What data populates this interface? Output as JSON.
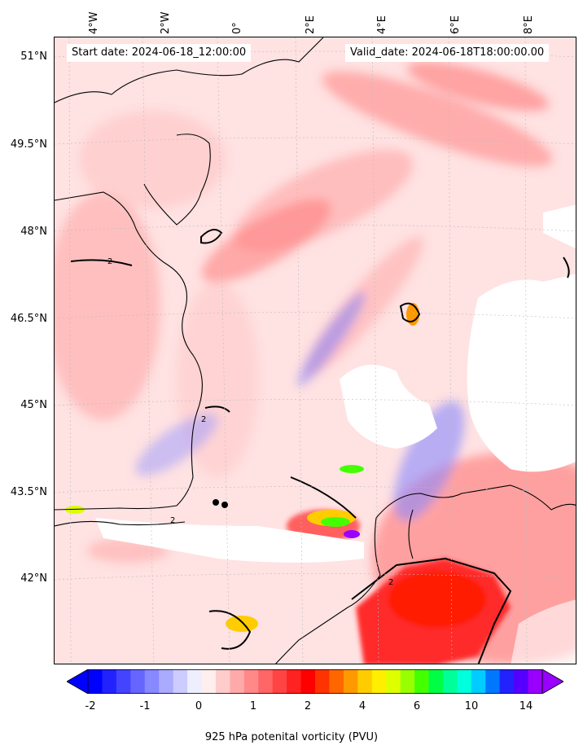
{
  "header": {
    "start_date": "Start date: 2024-06-18_12:00:00",
    "valid_date": "Valid_date: 2024-06-18T18:00:00.00"
  },
  "axes": {
    "lon_labels": [
      "4°W",
      "2°W",
      "0°",
      "2°E",
      "4°E",
      "6°E",
      "8°E"
    ],
    "lat_labels": [
      "51°N",
      "49.5°N",
      "48°N",
      "46.5°N",
      "45°N",
      "43.5°N",
      "42°N"
    ]
  },
  "colorbar": {
    "label": "925 hPa potenital vorticity (PVU)",
    "ticks": [
      "-2",
      "-1",
      "0",
      "1",
      "2",
      "4",
      "6",
      "10",
      "14"
    ],
    "colors": [
      "#0000ff",
      "#2222ff",
      "#4444ff",
      "#6666ff",
      "#8888ff",
      "#aaaaff",
      "#ccccff",
      "#eeeeff",
      "#ffeeee",
      "#ffcccc",
      "#ffaaaa",
      "#ff8888",
      "#ff6666",
      "#ff4444",
      "#ff2222",
      "#ff0000",
      "#ff3300",
      "#ff6600",
      "#ff9900",
      "#ffcc00",
      "#ffee00",
      "#ddff00",
      "#99ff00",
      "#44ff00",
      "#00ff44",
      "#00ff99",
      "#00ffdd",
      "#00ccff",
      "#0077ff",
      "#2222ff",
      "#5500ff",
      "#9900ff"
    ]
  },
  "map": {
    "contour_value_label": "2"
  }
}
